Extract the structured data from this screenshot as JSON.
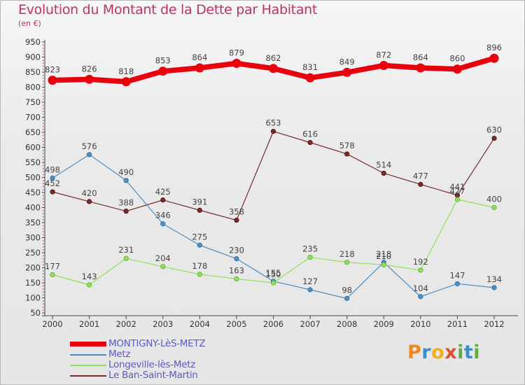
{
  "title": "Evolution du Montant de la Dette par Habitant",
  "subtitle": "(en €)",
  "logo_text": "Proxiti",
  "chart_data": {
    "type": "line",
    "title": "Evolution du Montant de la Dette par Habitant",
    "subtitle": "(en €)",
    "x": [
      "2000",
      "2001",
      "2002",
      "2003",
      "2004",
      "2005",
      "2006",
      "2007",
      "2008",
      "2009",
      "2010",
      "2011",
      "2012"
    ],
    "ylim": [
      50,
      950
    ],
    "yticks": [
      50,
      100,
      150,
      200,
      250,
      300,
      350,
      400,
      450,
      500,
      550,
      600,
      650,
      700,
      750,
      800,
      850,
      900,
      950
    ],
    "grid": false,
    "legend_position": "bottom-left",
    "series": [
      {
        "name": "MONTIGNY-LèS-METZ",
        "color": "#e8000c",
        "values": [
          823,
          826,
          818,
          853,
          864,
          879,
          862,
          831,
          849,
          872,
          864,
          860,
          896
        ]
      },
      {
        "name": "Metz",
        "color": "#4c8fc4",
        "values": [
          498,
          576,
          490,
          346,
          275,
          230,
          155,
          127,
          98,
          218,
          104,
          147,
          134
        ]
      },
      {
        "name": "Longeville-lès-Metz",
        "color": "#8fe05a",
        "values": [
          177,
          143,
          231,
          204,
          178,
          163,
          150,
          235,
          218,
          210,
          192,
          427,
          400
        ]
      },
      {
        "name": "Le Ban-Saint-Martin",
        "color": "#7a2a2a",
        "values": [
          452,
          420,
          388,
          425,
          391,
          358,
          653,
          616,
          578,
          514,
          477,
          441,
          630
        ]
      }
    ]
  }
}
